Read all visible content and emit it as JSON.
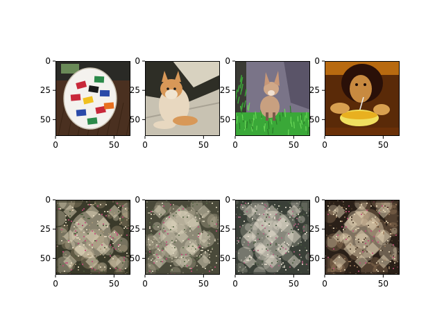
{
  "figure": {
    "background": "#ffffff",
    "layout": "2 rows x 4 columns grid of image subplots",
    "rows": [
      {
        "row": "input-images",
        "panels": [
          {
            "subject": "soccer ball covered in national flags on a wooden floor",
            "palette": [
              "#f4f2ee",
              "#c8283a",
              "#2c8a4a",
              "#2a4aa8",
              "#f0c020",
              "#5a3a22"
            ]
          },
          {
            "subject": "corgi dog lying on sunlit pavement",
            "palette": [
              "#3a3a30",
              "#c8c2b2",
              "#e8d8c0",
              "#d89858",
              "#5a3a22"
            ]
          },
          {
            "subject": "fox kit sitting on green grass beside a stone wall",
            "palette": [
              "#7a7488",
              "#2a3a1a",
              "#3aa838",
              "#c8a080",
              "#6a4a3a"
            ]
          },
          {
            "subject": "girl drinking from a glass with a straw, warm lighting",
            "palette": [
              "#5a2a08",
              "#c88a20",
              "#e8b020",
              "#f0e060",
              "#2a1008"
            ]
          }
        ]
      },
      {
        "row": "generated-images",
        "panels": [
          {
            "subject": "noisy reconstructed pattern with checkered texture",
            "palette": [
              "#3a3a2a",
              "#a89878",
              "#e8dcc0",
              "#c04878",
              "#4a5a38"
            ]
          },
          {
            "subject": "noisy reconstructed pattern with checkered texture",
            "palette": [
              "#4a4a3a",
              "#b8b098",
              "#e0d8c0",
              "#c04878",
              "#5a6a48"
            ]
          },
          {
            "subject": "noisy reconstructed pattern with checkered texture",
            "palette": [
              "#3a4038",
              "#a8a898",
              "#e8e0d0",
              "#b06080",
              "#4a5a40"
            ]
          },
          {
            "subject": "noisy reconstructed pattern with checkered texture",
            "palette": [
              "#2a2018",
              "#a08060",
              "#e8d8b8",
              "#c04878",
              "#4a3a28"
            ]
          }
        ]
      }
    ],
    "x_ticks": [
      "0",
      "50"
    ],
    "y_ticks": [
      "0",
      "25",
      "50"
    ],
    "axis_range": {
      "x": [
        0,
        64
      ],
      "y": [
        64,
        0
      ]
    }
  }
}
